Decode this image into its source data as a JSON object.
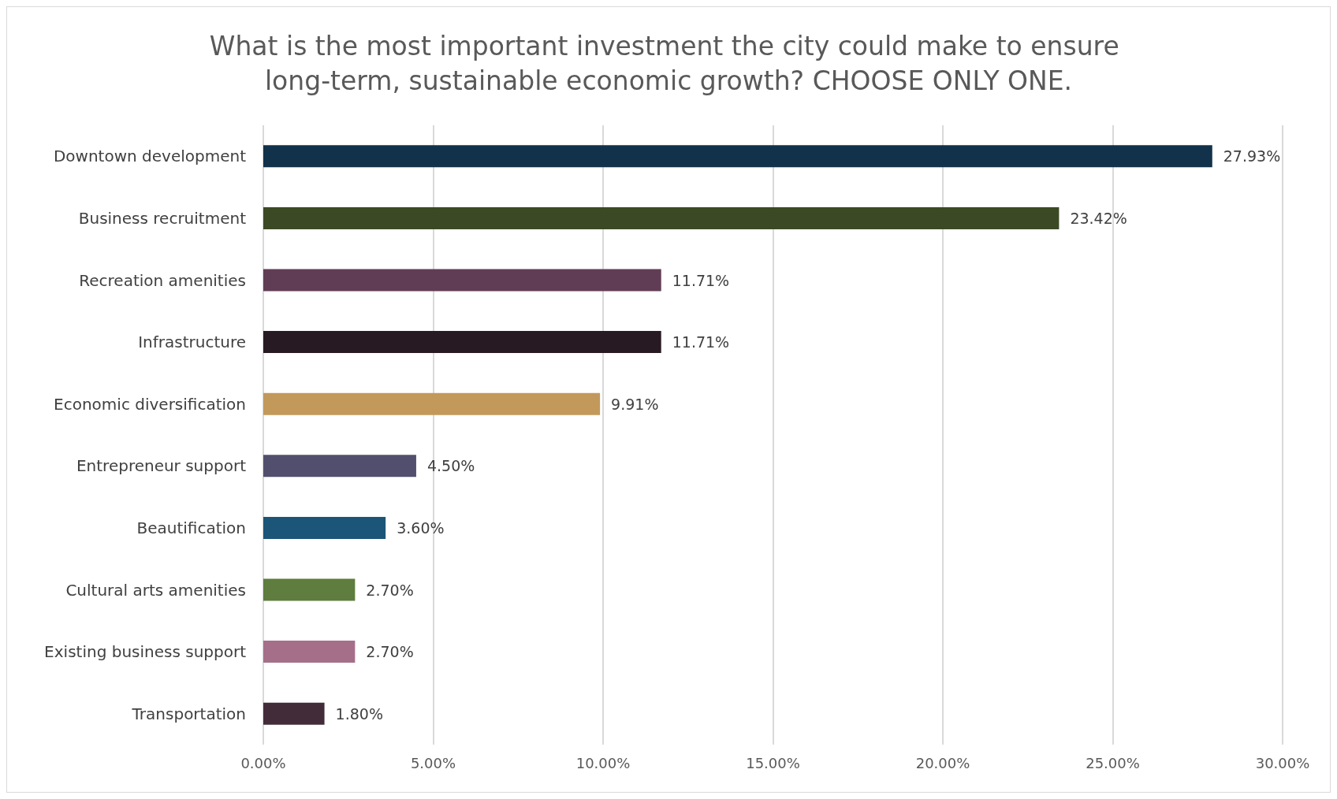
{
  "chart_data": {
    "type": "bar",
    "orientation": "horizontal",
    "title": "What is the most important investment the city could make to ensure long-term, sustainable economic growth? CHOOSE ONLY ONE.",
    "categories": [
      "Downtown development",
      "Business recruitment",
      "Recreation amenities",
      "Infrastructure",
      "Economic diversification",
      "Entrepreneur support",
      "Beautification",
      "Cultural arts amenities",
      "Existing business support",
      "Transportation"
    ],
    "values": [
      27.93,
      23.42,
      11.71,
      11.71,
      9.91,
      4.5,
      3.6,
      2.7,
      2.7,
      1.8
    ],
    "value_labels": [
      "27.93%",
      "23.42%",
      "11.71%",
      "11.71%",
      "9.91%",
      "4.50%",
      "3.60%",
      "2.70%",
      "2.70%",
      "1.80%"
    ],
    "colors": [
      "#11324a",
      "#3b4a24",
      "#613d55",
      "#281a22",
      "#c2995a",
      "#524f6e",
      "#1b5577",
      "#5e7d3e",
      "#a56f8a",
      "#432c3a"
    ],
    "xlim": [
      0,
      30
    ],
    "xticks": [
      {
        "value": 0,
        "label": "0.00%"
      },
      {
        "value": 5,
        "label": "5.00%"
      },
      {
        "value": 10,
        "label": "10.00%"
      },
      {
        "value": 15,
        "label": "15.00%"
      },
      {
        "value": 20,
        "label": "20.00%"
      },
      {
        "value": 25,
        "label": "25.00%"
      },
      {
        "value": 30,
        "label": "30.00%"
      }
    ],
    "grid": "x"
  }
}
